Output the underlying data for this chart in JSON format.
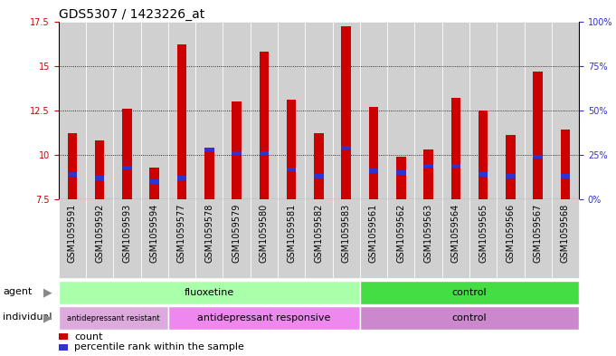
{
  "title": "GDS5307 / 1423226_at",
  "samples": [
    "GSM1059591",
    "GSM1059592",
    "GSM1059593",
    "GSM1059594",
    "GSM1059577",
    "GSM1059578",
    "GSM1059579",
    "GSM1059580",
    "GSM1059581",
    "GSM1059582",
    "GSM1059583",
    "GSM1059561",
    "GSM1059562",
    "GSM1059563",
    "GSM1059564",
    "GSM1059565",
    "GSM1059566",
    "GSM1059567",
    "GSM1059568"
  ],
  "bar_values": [
    11.2,
    10.8,
    12.6,
    9.3,
    16.2,
    10.2,
    13.0,
    15.8,
    13.1,
    11.2,
    17.2,
    12.7,
    9.9,
    10.3,
    13.2,
    12.5,
    11.1,
    14.7,
    11.4
  ],
  "bar_bottom": 7.5,
  "blue_values": [
    8.9,
    8.7,
    9.3,
    8.5,
    8.7,
    10.3,
    10.1,
    10.1,
    9.2,
    8.8,
    10.4,
    9.1,
    9.0,
    9.4,
    9.4,
    8.9,
    8.8,
    9.9,
    8.8
  ],
  "bar_color": "#cc0000",
  "blue_color": "#3333cc",
  "ylim": [
    7.5,
    17.5
  ],
  "yticks_left": [
    7.5,
    10.0,
    12.5,
    15.0,
    17.5
  ],
  "yticks_left_labels": [
    "7.5",
    "10",
    "12.5",
    "15",
    "17.5"
  ],
  "yticks_right_pos": [
    7.5,
    10.0,
    12.5,
    15.0,
    17.5
  ],
  "yticks_right_labels": [
    "0%",
    "25%",
    "50%",
    "75%",
    "100%"
  ],
  "agent_groups": [
    {
      "label": "fluoxetine",
      "start": 0,
      "end": 11,
      "color": "#aaffaa"
    },
    {
      "label": "control",
      "start": 11,
      "end": 19,
      "color": "#44dd44"
    }
  ],
  "individual_groups": [
    {
      "label": "antidepressant resistant",
      "start": 0,
      "end": 4,
      "color": "#ddaadd",
      "fontsize": 6
    },
    {
      "label": "antidepressant responsive",
      "start": 4,
      "end": 11,
      "color": "#ee88ee",
      "fontsize": 8
    },
    {
      "label": "control",
      "start": 11,
      "end": 19,
      "color": "#cc88cc",
      "fontsize": 8
    }
  ],
  "bar_color_left": "#cc0000",
  "bar_color_right": "#3333cc",
  "cell_bg": "#d0d0d0",
  "plot_bg": "#ffffff",
  "bar_width": 0.35,
  "title_fontsize": 10,
  "tick_fontsize": 7,
  "legend_fontsize": 8
}
